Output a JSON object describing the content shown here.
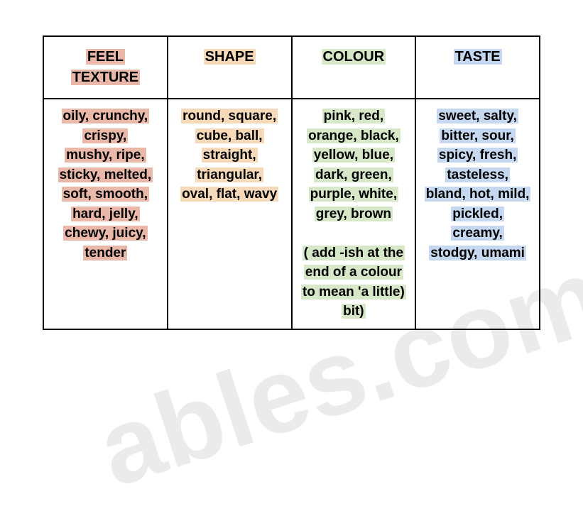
{
  "table": {
    "columns": [
      {
        "header_lines": [
          "FEEL",
          "TEXTURE"
        ],
        "highlight": "hl-pink"
      },
      {
        "header_lines": [
          "SHAPE"
        ],
        "highlight": "hl-peach"
      },
      {
        "header_lines": [
          "COLOUR"
        ],
        "highlight": "hl-green"
      },
      {
        "header_lines": [
          "TASTE"
        ],
        "highlight": "hl-blue"
      }
    ],
    "cells": {
      "feel": {
        "highlight": "hl-pink",
        "lines": [
          "oily, crunchy,",
          "crispy,",
          "mushy, ripe,",
          "sticky, melted,",
          "soft, smooth,",
          "hard, jelly,",
          "chewy,  juicy,",
          "tender"
        ],
        "note_lines": []
      },
      "shape": {
        "highlight": "hl-peach",
        "lines": [
          "round, square,",
          "cube, ball,",
          "straight,",
          "triangular,",
          "oval, flat, wavy"
        ],
        "note_lines": []
      },
      "colour": {
        "highlight": "hl-green",
        "lines": [
          "pink, red,",
          "orange, black,",
          "yellow, blue,",
          "dark, green,",
          "purple, white,",
          "grey, brown"
        ],
        "note_lines": [
          "( add -ish at the",
          "end of a colour",
          "to mean 'a little)",
          "bit)"
        ]
      },
      "taste": {
        "highlight": "hl-blue",
        "lines": [
          "sweet, salty,",
          "bitter, sour,",
          "spicy, fresh,",
          "tasteless,",
          "bland, hot, mild,",
          "pickled,",
          "creamy,",
          "stodgy, umami"
        ],
        "note_lines": []
      }
    },
    "column_widths_pct": [
      25,
      25,
      25,
      25
    ],
    "border_color": "#000000",
    "background_color": "#ffffff",
    "header_fontsize": 20,
    "cell_fontsize": 19,
    "font_weight": "bold"
  },
  "watermark_text": "ables.com"
}
